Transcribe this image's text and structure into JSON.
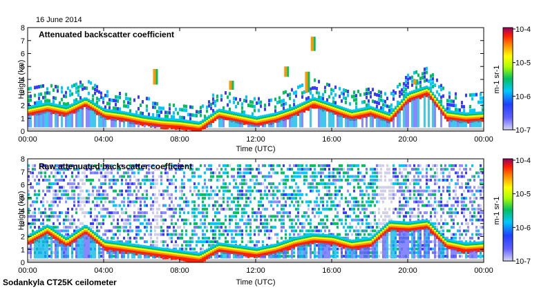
{
  "header": {
    "date": "16 June 2014"
  },
  "footer": {
    "instrument": "Sodankyla CT25K ceilometer"
  },
  "colors": {
    "ground": "#c8c8c8",
    "background": "#ffffff",
    "colormap": [
      "#d8d8f4",
      "#3a3aff",
      "#00c8ff",
      "#00c060",
      "#ffff00",
      "#ff9600",
      "#ff2000",
      "#960064"
    ]
  },
  "chart_data": [
    {
      "type": "heatmap",
      "title": "Attenuated backscatter coefficient",
      "xlabel": "Time (UTC)",
      "ylabel": "Height (km)",
      "xlim": [
        0,
        24
      ],
      "ylim": [
        0,
        8
      ],
      "x_ticks": [
        "00:00",
        "04:00",
        "08:00",
        "12:00",
        "16:00",
        "20:00",
        "00:00"
      ],
      "y_ticks": [
        "0",
        "1",
        "2",
        "3",
        "4",
        "5",
        "6",
        "7",
        "8"
      ],
      "colorbar": {
        "scale": "log",
        "range": [
          1e-07,
          0.0001
        ],
        "labels": [
          "10-7",
          "10-6",
          "10-5",
          "10-4"
        ],
        "unit": "m-1 sr-1"
      },
      "cloud_base_km": [
        [
          0,
          1.6
        ],
        [
          1,
          1.9
        ],
        [
          2,
          1.6
        ],
        [
          3,
          2.3
        ],
        [
          4,
          1.4
        ],
        [
          5,
          1.2
        ],
        [
          6,
          0.9
        ],
        [
          7,
          0.7
        ],
        [
          8,
          0.6
        ],
        [
          9,
          0.4
        ],
        [
          10,
          1.4
        ],
        [
          11,
          1.1
        ],
        [
          12,
          0.8
        ],
        [
          13,
          1.1
        ],
        [
          14,
          1.6
        ],
        [
          15,
          2.3
        ],
        [
          16,
          1.8
        ],
        [
          17,
          1.3
        ],
        [
          18,
          1.6
        ],
        [
          19,
          1.1
        ],
        [
          20,
          2.7
        ],
        [
          21,
          3.2
        ],
        [
          22,
          1.3
        ],
        [
          23,
          1.1
        ],
        [
          24,
          1.2
        ]
      ]
    },
    {
      "type": "heatmap",
      "title": "Raw attenuated backscatter coefficient",
      "xlabel": "Time (UTC)",
      "ylabel": "Height (km)",
      "xlim": [
        0,
        24
      ],
      "ylim": [
        0,
        8
      ],
      "x_ticks": [
        "00:00",
        "04:00",
        "08:00",
        "12:00",
        "16:00",
        "20:00",
        "00:00"
      ],
      "y_ticks": [
        "0",
        "1",
        "2",
        "3",
        "4",
        "5",
        "6",
        "7",
        "8"
      ],
      "colorbar": {
        "scale": "log",
        "range": [
          1e-07,
          0.0001
        ],
        "labels": [
          "10-7",
          "10-6",
          "10-5",
          "10-4"
        ],
        "unit": "m-1 sr-1"
      },
      "cloud_base_km": [
        [
          0,
          1.8
        ],
        [
          1,
          2.6
        ],
        [
          2,
          1.6
        ],
        [
          3,
          2.6
        ],
        [
          4,
          1.4
        ],
        [
          5,
          1.2
        ],
        [
          6,
          1.0
        ],
        [
          7,
          0.8
        ],
        [
          8,
          0.6
        ],
        [
          9,
          0.4
        ],
        [
          10,
          1.2
        ],
        [
          11,
          1.0
        ],
        [
          12,
          0.8
        ],
        [
          13,
          1.1
        ],
        [
          14,
          1.6
        ],
        [
          15,
          1.9
        ],
        [
          16,
          1.8
        ],
        [
          17,
          1.4
        ],
        [
          18,
          1.6
        ],
        [
          19,
          2.9
        ],
        [
          20,
          2.8
        ],
        [
          21,
          3.0
        ],
        [
          22,
          1.5
        ],
        [
          23,
          1.2
        ],
        [
          24,
          1.3
        ]
      ]
    }
  ]
}
